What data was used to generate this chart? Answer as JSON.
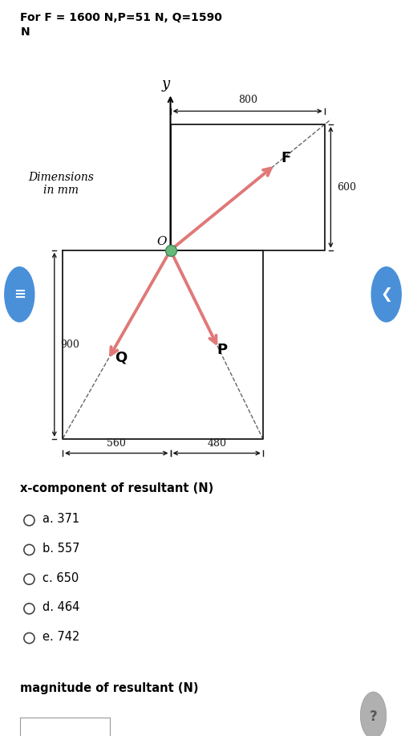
{
  "title_text": "For F = 1600 N,P=51 N, Q=1590\nN",
  "dim_label": "Dimensions\nin mm",
  "bg_color": "#ffffff",
  "arrow_color": "#e07878",
  "dashed_color": "#666666",
  "origin_color": "#6ab87a",
  "box_color": "#1a1a1a",
  "dim_color": "#1a1a1a",
  "O_label": "O",
  "F_label": "F",
  "P_label": "P",
  "Q_label": "Q",
  "y_label": "y",
  "dim_800": "800",
  "dim_600": "600",
  "dim_900": "900",
  "dim_560": "560",
  "dim_480": "480",
  "q_label": "x-component of resultant (N)",
  "choices": [
    "a. 371",
    "b. 557",
    "c. 650",
    "d. 464",
    "e. 742"
  ],
  "mag_label": "magnitude of resultant (N)",
  "question_mark": "?",
  "nav_color": "#4a90d9",
  "qmark_color": "#b0b0b0"
}
